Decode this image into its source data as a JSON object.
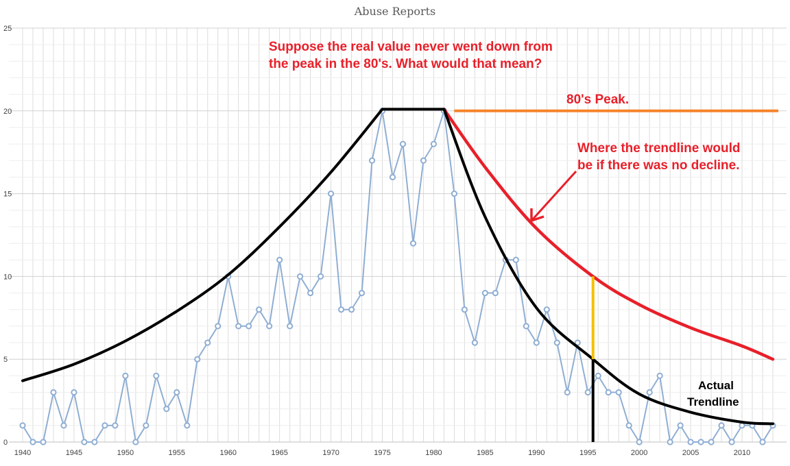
{
  "chart_data": {
    "type": "line",
    "title": "Abuse Reports",
    "xlabel": "",
    "ylabel": "",
    "xlim": [
      1940,
      2013
    ],
    "ylim": [
      0,
      25
    ],
    "x_ticks": [
      "1940",
      "1945",
      "1950",
      "1955",
      "1960",
      "1965",
      "1970",
      "1975",
      "1980",
      "1985",
      "1990",
      "1995",
      "2000",
      "2005",
      "2010"
    ],
    "y_ticks": [
      "0",
      "5",
      "10",
      "15",
      "20",
      "25"
    ],
    "grid": "vertical-yearly-and-horizontal",
    "series": [
      {
        "x": [
          1940,
          1941,
          1942,
          1943,
          1944,
          1945,
          1946,
          1947,
          1948,
          1949,
          1950,
          1951,
          1952,
          1953,
          1954,
          1955,
          1956,
          1957,
          1958,
          1959,
          1960,
          1961,
          1962,
          1963,
          1964,
          1965,
          1966,
          1967,
          1968,
          1969,
          1970,
          1971,
          1972,
          1973,
          1974,
          1975,
          1976,
          1977,
          1978,
          1979,
          1980,
          1981,
          1982,
          1983,
          1984,
          1985,
          1986,
          1987,
          1988,
          1989,
          1990,
          1991,
          1992,
          1993,
          1994,
          1995,
          1996,
          1997,
          1998,
          1999,
          2000,
          2001,
          2002,
          2003,
          2004,
          2005,
          2006,
          2007,
          2008,
          2009,
          2010,
          2011,
          2012,
          2013
        ],
        "values": [
          1,
          0,
          0,
          3,
          1,
          3,
          0,
          0,
          1,
          1,
          4,
          0,
          1,
          4,
          2,
          3,
          1,
          5,
          6,
          7,
          10,
          7,
          7,
          8,
          7,
          11,
          7,
          10,
          9,
          10,
          15,
          8,
          8,
          9,
          17,
          20,
          16,
          18,
          12,
          17,
          18,
          20,
          15,
          8,
          6,
          9,
          9,
          11,
          11,
          7,
          6,
          8,
          6,
          3,
          6,
          3,
          4,
          3,
          3,
          1,
          0,
          3,
          4,
          0,
          1,
          0,
          0,
          0,
          1,
          0,
          1,
          1,
          0,
          1
        ],
        "color": "#8faed3"
      }
    ],
    "overlays": {
      "actual_trend": {
        "color": "#000000",
        "x": [
          1940,
          1945,
          1950,
          1955,
          1960,
          1965,
          1970,
          1975,
          1981,
          1985,
          1990,
          1995.5,
          2000,
          2005,
          2010,
          2013
        ],
        "values": [
          3.7,
          4.7,
          6.1,
          7.9,
          10.1,
          13.0,
          16.3,
          20.1,
          20.1,
          13.6,
          8.1,
          5.0,
          2.9,
          1.8,
          1.2,
          1.1
        ]
      },
      "no_decline_trend": {
        "color": "#e8202a",
        "x": [
          1981,
          1985,
          1990,
          1995.5,
          2000,
          2005,
          2010,
          2013
        ],
        "values": [
          20.1,
          16.6,
          12.9,
          10.0,
          8.3,
          6.9,
          5.8,
          5.0
        ]
      },
      "peak_line": {
        "color": "#f5842b",
        "x_from": 1982,
        "x_to": 2013,
        "value": 20
      },
      "gap_marker": {
        "color": "#f5c000",
        "x": 1995.5,
        "from": 5,
        "to": 10
      },
      "drop_marker": {
        "color": "#000000",
        "x": 1995.5,
        "from": 0,
        "to": 5
      }
    }
  },
  "annotations": {
    "question": [
      "Suppose the real value never went down from",
      "the peak in the 80's.  What would that mean?"
    ],
    "peak_label": "80's Peak.",
    "no_decline_label": [
      "Where the trendline would",
      "be if there was no decline."
    ],
    "actual_label": [
      "Actual",
      "Trendline"
    ],
    "annotation_color": "#e8202a"
  }
}
